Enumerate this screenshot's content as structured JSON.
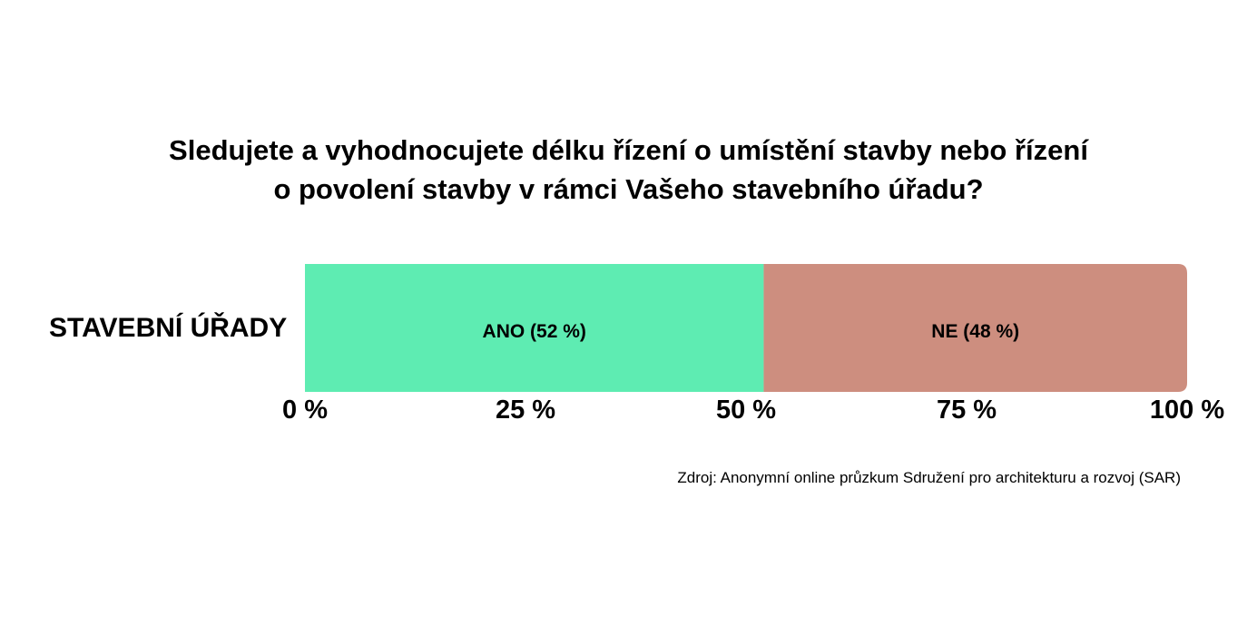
{
  "chart_data": {
    "type": "bar",
    "orientation": "horizontal",
    "stacked": true,
    "title_lines": [
      "Sledujete a vyhodnocujete délku řízení o umístění stavby nebo řízení",
      "o povolení stavby v rámci Vašeho stavebního úřadu?"
    ],
    "categories": [
      "STAVEBNÍ ÚŘADY"
    ],
    "series": [
      {
        "name": "ANO",
        "label": "ANO (52 %)",
        "values": [
          52
        ],
        "color": "#5eecb2"
      },
      {
        "name": "NE",
        "label": "NE (48 %)",
        "values": [
          48
        ],
        "color": "#cd8e7f"
      }
    ],
    "xlim": [
      0,
      100
    ],
    "ticks": [
      {
        "value": 0,
        "label": "0 %"
      },
      {
        "value": 25,
        "label": "25 %"
      },
      {
        "value": 50,
        "label": "50 %"
      },
      {
        "value": 75,
        "label": "75 %"
      },
      {
        "value": 100,
        "label": "100 %"
      }
    ],
    "grid": false,
    "source": "Zdroj: Anonymní online průzkum Sdružení pro architekturu a rozvoj (SAR)"
  }
}
